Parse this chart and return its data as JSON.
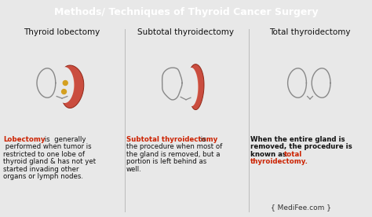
{
  "title": "Methods/ Techniques of Thyroid Cancer Surgery",
  "title_bg": "#111111",
  "title_color": "#ffffff",
  "bg_color": "#e8e8e8",
  "col1_heading": "Thyroid lobectomy",
  "col2_heading": "Subtotal thyroidectomy",
  "col3_heading": "Total thyroidectomy",
  "footer": "{ MediFee.com }",
  "footer_color": "#333333",
  "red_color": "#cc2200",
  "dark_color": "#111111",
  "lobe_fill1": "#c84030",
  "lobe_fill2": "#e06040",
  "lobe_fill3": "#f09070",
  "lobe_edge": "#8b2010",
  "outline_color": "#888888",
  "nodule_color": "#d4a020"
}
